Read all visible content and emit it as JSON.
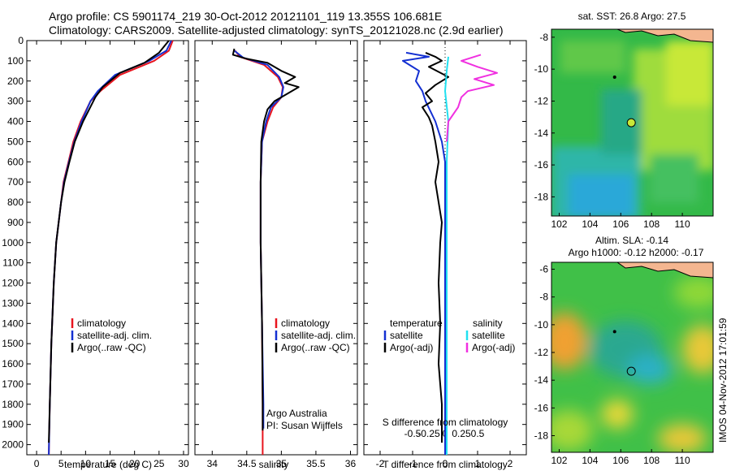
{
  "colors": {
    "red": "#e8141e",
    "blue": "#1430d2",
    "black": "#000000",
    "cyan": "#20e0f0",
    "magenta": "#f030e0",
    "land": "#f4b690"
  },
  "title": {
    "line1": "Argo profile: CS 5901174_219 30-Oct-2012 20121101_119 13.355S 106.681E",
    "line2": "Climatology: CARS2009. Satellite-adjusted climatology: synTS_20121028.nc (2.9d earlier)"
  },
  "side_text": "IMOS 04-Nov-2012 17:01:59",
  "legends": {
    "clim": "climatology",
    "sat": "satellite-adj. clim.",
    "argo": "Argo(..raw -QC)",
    "diff_t_head": "temperature",
    "diff_s_head": "salinity",
    "satellite": "satellite",
    "argo_adj": "Argo(-adj)"
  },
  "notes": {
    "argo_australia": "Argo Australia",
    "pi": "PI: Susan Wijffels"
  },
  "chart_data": [
    {
      "type": "line",
      "panel": "temperature",
      "xlabel": "temperature (deg C)",
      "xlim": [
        -2,
        31
      ],
      "ylim": [
        2050,
        0
      ],
      "xticks": [
        0,
        5,
        10,
        15,
        20,
        25,
        30
      ],
      "yticks": [
        0,
        100,
        200,
        300,
        400,
        500,
        600,
        700,
        800,
        900,
        1000,
        1100,
        1200,
        1300,
        1400,
        1500,
        1600,
        1700,
        1800,
        1900,
        2000
      ],
      "series": [
        {
          "name": "climatology",
          "color": "red",
          "points": [
            [
              27.8,
              0
            ],
            [
              27,
              50
            ],
            [
              24,
              100
            ],
            [
              17,
              170
            ],
            [
              13,
              250
            ],
            [
              11,
              300
            ],
            [
              9,
              400
            ],
            [
              7.5,
              500
            ],
            [
              6.5,
              600
            ],
            [
              5.5,
              700
            ],
            [
              5,
              800
            ],
            [
              4.5,
              900
            ],
            [
              4,
              1000
            ],
            [
              3.5,
              1200
            ],
            [
              3,
              1500
            ],
            [
              2.7,
              1800
            ],
            [
              2.5,
              2050
            ]
          ]
        },
        {
          "name": "satellite-adj. clim.",
          "color": "blue",
          "points": [
            [
              27.5,
              0
            ],
            [
              26.5,
              50
            ],
            [
              23,
              100
            ],
            [
              16,
              170
            ],
            [
              12.5,
              250
            ],
            [
              11,
              300
            ],
            [
              9.2,
              400
            ],
            [
              7.7,
              500
            ],
            [
              6.6,
              600
            ],
            [
              5.6,
              700
            ],
            [
              5,
              800
            ],
            [
              4.5,
              900
            ],
            [
              4,
              1000
            ],
            [
              3.5,
              1200
            ],
            [
              3,
              1500
            ],
            [
              2.7,
              1800
            ],
            [
              2.5,
              2050
            ]
          ]
        },
        {
          "name": "Argo(..raw -QC)",
          "color": "black",
          "points": [
            [
              27,
              0
            ],
            [
              25,
              60
            ],
            [
              22,
              110
            ],
            [
              17,
              160
            ],
            [
              13.5,
              230
            ],
            [
              12,
              280
            ],
            [
              9.5,
              400
            ],
            [
              7.8,
              500
            ],
            [
              6.7,
              600
            ],
            [
              5.7,
              700
            ],
            [
              5,
              800
            ],
            [
              4.5,
              900
            ],
            [
              4,
              1000
            ],
            [
              3.5,
              1200
            ],
            [
              3,
              1500
            ],
            [
              2.7,
              1800
            ],
            [
              2.5,
              1990
            ]
          ]
        }
      ]
    },
    {
      "type": "line",
      "panel": "salinity",
      "xlabel": "salinity",
      "xlim": [
        33.75,
        36.1
      ],
      "ylim": [
        2050,
        0
      ],
      "xticks": [
        34,
        34.5,
        35,
        35.5,
        36
      ],
      "series": [
        {
          "name": "climatology",
          "color": "red",
          "points": [
            [
              34.33,
              50
            ],
            [
              34.4,
              80
            ],
            [
              34.75,
              120
            ],
            [
              34.95,
              180
            ],
            [
              35.02,
              230
            ],
            [
              35.0,
              280
            ],
            [
              34.88,
              330
            ],
            [
              34.8,
              400
            ],
            [
              34.72,
              500
            ],
            [
              34.7,
              700
            ],
            [
              34.7,
              1000
            ],
            [
              34.72,
              1400
            ],
            [
              34.73,
              1800
            ],
            [
              34.73,
              2050
            ]
          ]
        },
        {
          "name": "satellite-adj. clim.",
          "color": "blue",
          "points": [
            [
              34.32,
              50
            ],
            [
              34.45,
              85
            ],
            [
              34.8,
              120
            ],
            [
              34.97,
              180
            ],
            [
              35.03,
              230
            ],
            [
              35.0,
              280
            ],
            [
              34.85,
              330
            ],
            [
              34.78,
              400
            ],
            [
              34.72,
              500
            ],
            [
              34.7,
              700
            ],
            [
              34.7,
              1000
            ],
            [
              34.72,
              1400
            ],
            [
              34.74,
              1800
            ],
            [
              34.74,
              1920
            ]
          ]
        },
        {
          "name": "Argo(..raw -QC)",
          "color": "black",
          "points": [
            [
              34.32,
              40
            ],
            [
              34.3,
              70
            ],
            [
              34.5,
              90
            ],
            [
              34.8,
              110
            ],
            [
              35.0,
              150
            ],
            [
              35.2,
              180
            ],
            [
              35.05,
              210
            ],
            [
              35.25,
              230
            ],
            [
              35.1,
              260
            ],
            [
              34.9,
              300
            ],
            [
              34.8,
              340
            ],
            [
              34.75,
              400
            ],
            [
              34.71,
              500
            ],
            [
              34.7,
              700
            ],
            [
              34.7,
              1000
            ],
            [
              34.72,
              1400
            ],
            [
              34.73,
              1800
            ],
            [
              34.73,
              1930
            ]
          ]
        }
      ]
    },
    {
      "type": "line",
      "panel": "difference",
      "xlabel": "T difference from climatology",
      "x2label": "S difference from climatology",
      "xlim": [
        -2.5,
        2.5
      ],
      "ylim": [
        2050,
        0
      ],
      "xticks": [
        -2,
        -1,
        0,
        1,
        2
      ],
      "s_ticks": [
        "-0.5",
        "-0.25",
        "0",
        "0.25",
        "0.5"
      ],
      "series": [
        {
          "name": "temperature satellite",
          "color": "blue",
          "points": [
            [
              -1.2,
              60
            ],
            [
              -0.5,
              80
            ],
            [
              -1.3,
              100
            ],
            [
              -0.8,
              150
            ],
            [
              -0.9,
              200
            ],
            [
              -0.7,
              250
            ],
            [
              -0.6,
              300
            ],
            [
              -0.3,
              400
            ],
            [
              -0.1,
              500
            ],
            [
              0,
              600
            ],
            [
              0,
              800
            ],
            [
              0,
              1200
            ],
            [
              0,
              1600
            ],
            [
              0,
              2050
            ]
          ]
        },
        {
          "name": "temperature Argo(-adj)",
          "color": "black",
          "points": [
            [
              -0.6,
              60
            ],
            [
              -0.3,
              80
            ],
            [
              -0.1,
              100
            ],
            [
              -0.5,
              130
            ],
            [
              0.1,
              180
            ],
            [
              -0.3,
              220
            ],
            [
              -0.6,
              260
            ],
            [
              -0.4,
              300
            ],
            [
              -0.7,
              330
            ],
            [
              -0.5,
              380
            ],
            [
              -0.4,
              420
            ],
            [
              -0.3,
              500
            ],
            [
              -0.2,
              600
            ],
            [
              -0.3,
              700
            ],
            [
              -0.2,
              800
            ],
            [
              -0.1,
              900
            ],
            [
              -0.15,
              1000
            ],
            [
              -0.2,
              1200
            ],
            [
              -0.15,
              1400
            ],
            [
              -0.2,
              1600
            ],
            [
              -0.1,
              1800
            ],
            [
              -0.1,
              1990
            ]
          ]
        },
        {
          "name": "salinity satellite",
          "color": "cyan",
          "points": [
            [
              0.1,
              80
            ],
            [
              0.05,
              150
            ],
            [
              0.0,
              250
            ],
            [
              0.1,
              400
            ],
            [
              0.05,
              600
            ],
            [
              0.05,
              1000
            ],
            [
              0.05,
              1400
            ],
            [
              0.05,
              1800
            ],
            [
              0.05,
              2050
            ]
          ]
        },
        {
          "name": "salinity Argo(-adj)",
          "color": "magenta",
          "points": [
            [
              1.1,
              70
            ],
            [
              0.5,
              100
            ],
            [
              1.0,
              130
            ],
            [
              1.6,
              160
            ],
            [
              0.9,
              190
            ],
            [
              1.5,
              220
            ],
            [
              0.7,
              250
            ],
            [
              0.5,
              280
            ],
            [
              0.4,
              330
            ],
            [
              0.1,
              400
            ],
            [
              0.05,
              500
            ]
          ]
        }
      ]
    },
    {
      "type": "heatmap",
      "panel": "sst-map",
      "title": "sat. SST: 26.8  Argo: 27.5",
      "xticks": [
        102,
        104,
        106,
        108,
        110
      ],
      "yticks": [
        -8,
        -10,
        -12,
        -14,
        -16,
        -18
      ],
      "xlim": [
        101.5,
        112
      ],
      "ylim": [
        -19.2,
        -7.5
      ],
      "argo_position": [
        106.681,
        -13.355
      ],
      "prev_position": [
        105.6,
        -10.5
      ]
    },
    {
      "type": "heatmap",
      "panel": "sla-map",
      "title": "Altim. SLA: -0.14",
      "subtitle": "Argo h1000: -0.12  h2000: -0.17",
      "xticks": [
        102,
        104,
        106,
        108,
        110
      ],
      "yticks": [
        -6,
        -8,
        -10,
        -12,
        -14,
        -16,
        -18
      ],
      "xlim": [
        101.5,
        112
      ],
      "ylim": [
        -19.2,
        -5.5
      ],
      "argo_position": [
        106.681,
        -13.355
      ],
      "prev_position": [
        105.6,
        -10.5
      ]
    }
  ]
}
